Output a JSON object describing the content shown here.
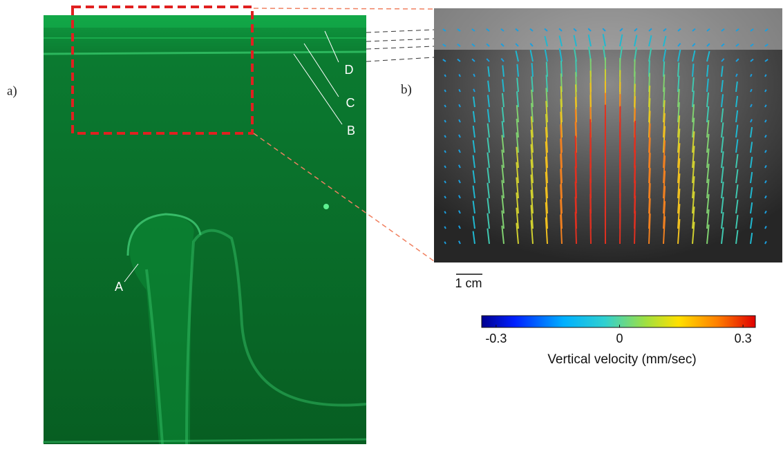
{
  "panels": {
    "a": {
      "label": "a)",
      "annotations": {
        "A": "A",
        "B": "B",
        "C": "C",
        "D": "D"
      }
    },
    "b": {
      "label": "b)",
      "scale_bar": "1 cm",
      "colorbar": {
        "label": "Vertical velocity (mm/sec)",
        "lim": [
          -0.335,
          0.33
        ],
        "ticks": [
          -0.3,
          0,
          0.3
        ]
      }
    }
  }
}
